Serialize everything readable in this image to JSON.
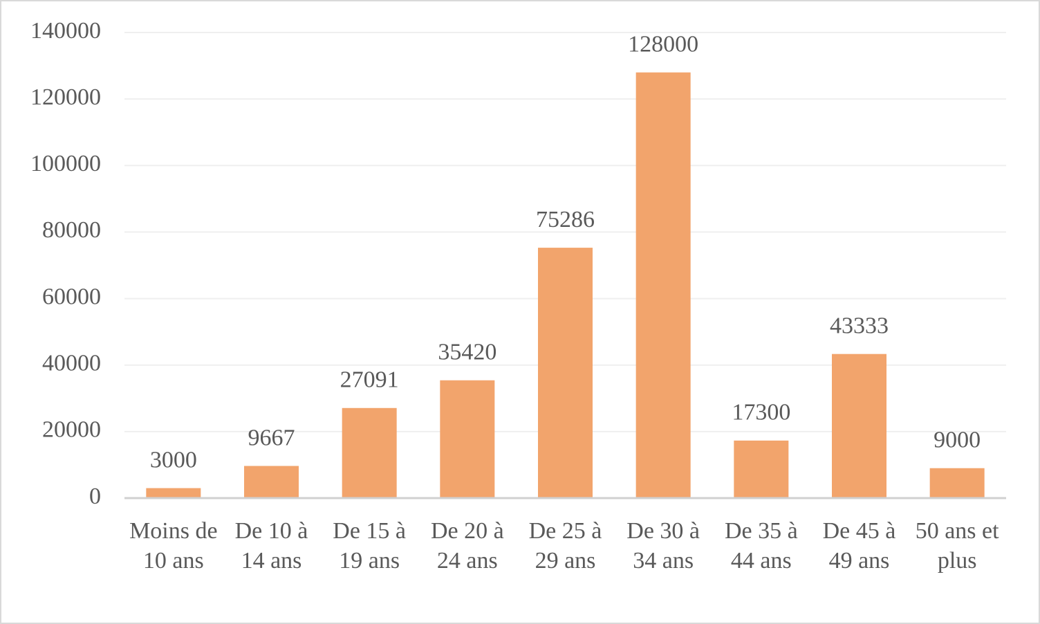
{
  "chart_data": {
    "type": "bar",
    "categories": [
      "Moins de 10 ans",
      "De 10 à 14 ans",
      "De 15 à 19 ans",
      "De 20 à 24 ans",
      "De 25 à 29 ans",
      "De 30 à 34 ans",
      "De 35 à 44 ans",
      "De 45 à 49 ans",
      "50 ans et plus"
    ],
    "values": [
      3000,
      9667,
      27091,
      35420,
      75286,
      128000,
      17300,
      43333,
      9000
    ],
    "color": "#f2a46c",
    "ylim": [
      0,
      140000
    ],
    "yticks": [
      0,
      20000,
      40000,
      60000,
      80000,
      100000,
      120000,
      140000
    ],
    "grid": true
  }
}
